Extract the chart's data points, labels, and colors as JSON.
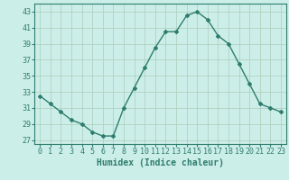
{
  "x": [
    0,
    1,
    2,
    3,
    4,
    5,
    6,
    7,
    8,
    9,
    10,
    11,
    12,
    13,
    14,
    15,
    16,
    17,
    18,
    19,
    20,
    21,
    22,
    23
  ],
  "y": [
    32.5,
    31.5,
    30.5,
    29.5,
    29.0,
    28.0,
    27.5,
    27.5,
    31.0,
    33.5,
    36.0,
    38.5,
    40.5,
    40.5,
    42.5,
    43.0,
    42.0,
    40.0,
    39.0,
    36.5,
    34.0,
    31.5,
    31.0,
    30.5
  ],
  "line_color": "#2e7d6e",
  "marker": "D",
  "marker_size": 2,
  "bg_color": "#cceee8",
  "grid_color": "#aaccbb",
  "xlabel": "Humidex (Indice chaleur)",
  "xlabel_fontsize": 7,
  "ylabel_ticks": [
    27,
    29,
    31,
    33,
    35,
    37,
    39,
    41,
    43
  ],
  "ylim": [
    26.5,
    44.0
  ],
  "xlim": [
    -0.5,
    23.5
  ],
  "xticks": [
    0,
    1,
    2,
    3,
    4,
    5,
    6,
    7,
    8,
    9,
    10,
    11,
    12,
    13,
    14,
    15,
    16,
    17,
    18,
    19,
    20,
    21,
    22,
    23
  ],
  "tick_fontsize": 6,
  "line_width": 1.0
}
